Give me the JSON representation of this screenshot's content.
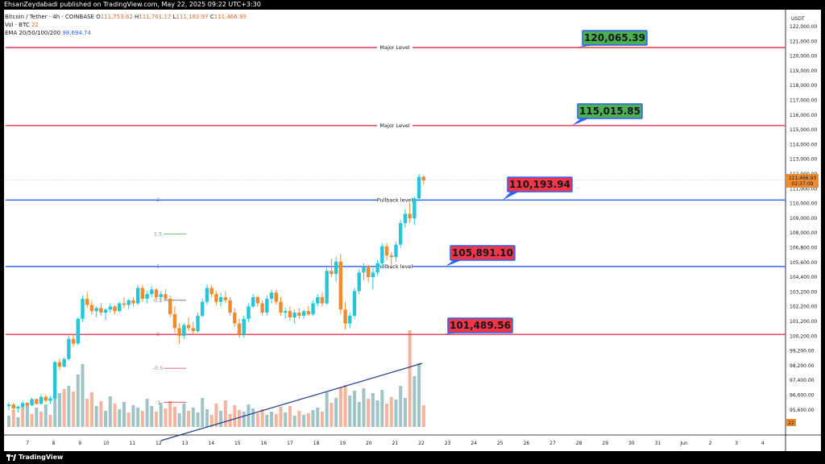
{
  "header": {
    "published": "EhsanZeydabadi published on TradingView.com, May 22, 2025 09:22 UTC+3:30"
  },
  "legend": {
    "symbol": "Bitcoin / Tether · 4h · COINBASE",
    "open_label": "O",
    "open": "111,753.62",
    "high_label": "H",
    "high": "111,761.17",
    "low_label": "L",
    "low": "111,182.97",
    "close_label": "C",
    "close": "111,466.93",
    "volume_label": "Vol · BTC",
    "volume": "22",
    "ema_label": "EMA 20/50/100/200",
    "ema_value": "98,694.74"
  },
  "footer": {
    "brand": "TradingView"
  },
  "colors": {
    "up": "#26c6da",
    "down": "#ef8a2d",
    "vol_up": "#9fc4c7",
    "vol_down": "#f4b49b",
    "major": "#e53950",
    "pullback": "#2962ff",
    "callout_green": "#4caf50",
    "callout_red": "#f23645"
  },
  "chart_data": {
    "type": "candlestick",
    "currency": "USDT",
    "ylim": [
      95500,
      122100
    ],
    "y_ticks": [
      "122,000.00",
      "121,000.00",
      "120,000.00",
      "119,000.00",
      "118,000.00",
      "117,000.00",
      "116,000.00",
      "115,000.00",
      "114,000.00",
      "113,000.00",
      "112,000.00",
      "111,000.00",
      "110,000.00",
      "109,000.00",
      "108,000.00",
      "106,800.00",
      "105,600.00",
      "104,400.00",
      "103,200.00",
      "102,200.00",
      "101,200.00",
      "100,200.00",
      "99,200.00",
      "98,200.00",
      "97,400.00",
      "96,600.00",
      "95,600.00"
    ],
    "x_ticks": [
      "7",
      "8",
      "9",
      "10",
      "11",
      "12",
      "13",
      "14",
      "15",
      "16",
      "17",
      "18",
      "19",
      "20",
      "21",
      "22",
      "23",
      "24",
      "25",
      "26",
      "27",
      "28",
      "29",
      "30",
      "31",
      "Jun",
      "2",
      "3",
      "4"
    ],
    "current_price_tag": {
      "price": "111,466.93",
      "countdown": "02:37:09"
    },
    "volume_tag": "22",
    "horizontal_levels": [
      {
        "name": "Major Level",
        "price": 120065.39,
        "kind": "major",
        "callout": "120,065.39",
        "callout_color": "green"
      },
      {
        "name": "Major Level",
        "price": 115015.85,
        "kind": "major",
        "callout": "115,015.85",
        "callout_color": "green"
      },
      {
        "name": "Pullback level",
        "price": 110193.94,
        "kind": "pullback",
        "callout": "110,193.94",
        "callout_color": "red"
      },
      {
        "name": "Pullback level",
        "price": 105891.1,
        "kind": "pullback",
        "callout": "105,891.10",
        "callout_color": "red"
      },
      {
        "name": "",
        "price": 101489.56,
        "kind": "major",
        "callout": "101,489.56",
        "callout_color": "red"
      }
    ],
    "fib_labels": [
      {
        "label": "2",
        "price": 110200
      },
      {
        "label": "1.5",
        "price": 108000
      },
      {
        "label": "1",
        "price": 105900
      },
      {
        "label": "0.5",
        "price": 103700
      },
      {
        "label": "0",
        "price": 101500
      },
      {
        "label": "-0.5",
        "price": 99300
      },
      {
        "label": "-1",
        "price": 97100
      }
    ],
    "candles": [
      [
        96850,
        97100,
        96600,
        96950
      ],
      [
        96950,
        97050,
        96550,
        96700
      ],
      [
        96700,
        96900,
        96450,
        96800
      ],
      [
        96800,
        97200,
        96700,
        97050
      ],
      [
        97050,
        97100,
        96800,
        96900
      ],
      [
        96900,
        97400,
        96850,
        97300
      ],
      [
        97300,
        97350,
        96950,
        97000
      ],
      [
        97000,
        97600,
        96950,
        97450
      ],
      [
        97450,
        97550,
        97100,
        97200
      ],
      [
        97200,
        97500,
        97000,
        97350
      ],
      [
        97350,
        99800,
        97300,
        99700
      ],
      [
        99700,
        99900,
        99200,
        99400
      ],
      [
        99400,
        100000,
        99350,
        99900
      ],
      [
        99900,
        101400,
        99800,
        101200
      ],
      [
        101200,
        101500,
        100700,
        100900
      ],
      [
        100900,
        102600,
        100800,
        102500
      ],
      [
        102500,
        104000,
        102300,
        103800
      ],
      [
        103800,
        104200,
        103200,
        103400
      ],
      [
        103400,
        103700,
        102800,
        103000
      ],
      [
        103000,
        103300,
        102600,
        103200
      ],
      [
        103200,
        103500,
        102700,
        102900
      ],
      [
        102900,
        103200,
        102400,
        103100
      ],
      [
        103100,
        103500,
        102900,
        103300
      ],
      [
        103300,
        103400,
        102800,
        103000
      ],
      [
        103000,
        103600,
        102900,
        103500
      ],
      [
        103500,
        103900,
        103200,
        103400
      ],
      [
        103400,
        103800,
        103100,
        103700
      ],
      [
        103700,
        103900,
        103300,
        103500
      ],
      [
        103500,
        104700,
        103400,
        104500
      ],
      [
        104500,
        104700,
        103600,
        103800
      ],
      [
        103800,
        104300,
        103500,
        104100
      ],
      [
        104100,
        104600,
        103900,
        104400
      ],
      [
        104400,
        104500,
        103700,
        103900
      ],
      [
        103900,
        104300,
        103600,
        104100
      ],
      [
        104100,
        104400,
        103700,
        103800
      ],
      [
        103800,
        104000,
        102600,
        102800
      ],
      [
        102800,
        103300,
        101600,
        101900
      ],
      [
        101900,
        102200,
        100900,
        101400
      ],
      [
        101400,
        102200,
        101200,
        102100
      ],
      [
        102100,
        102600,
        101700,
        101900
      ],
      [
        101900,
        102300,
        101500,
        101700
      ],
      [
        101700,
        102900,
        101600,
        102700
      ],
      [
        102700,
        103800,
        102600,
        103600
      ],
      [
        103600,
        104700,
        103400,
        104500
      ],
      [
        104500,
        104700,
        103900,
        104100
      ],
      [
        104100,
        104300,
        103400,
        103600
      ],
      [
        103600,
        104200,
        103300,
        103900
      ],
      [
        103900,
        104300,
        103500,
        103700
      ],
      [
        103700,
        103900,
        102700,
        102900
      ],
      [
        102900,
        103200,
        102000,
        102200
      ],
      [
        102200,
        102500,
        101300,
        101500
      ],
      [
        101500,
        102700,
        101300,
        102500
      ],
      [
        102500,
        103500,
        102300,
        103300
      ],
      [
        103300,
        104100,
        103200,
        103900
      ],
      [
        103900,
        104000,
        103300,
        103500
      ],
      [
        103500,
        103700,
        102700,
        102900
      ],
      [
        102900,
        104000,
        102700,
        103800
      ],
      [
        103800,
        104400,
        103500,
        104200
      ],
      [
        104200,
        104400,
        103400,
        103600
      ],
      [
        103600,
        103900,
        102700,
        102900
      ],
      [
        102900,
        103200,
        102500,
        103000
      ],
      [
        103000,
        103300,
        102400,
        102600
      ],
      [
        102600,
        103100,
        102200,
        102900
      ],
      [
        102900,
        103200,
        102500,
        102700
      ],
      [
        102700,
        103100,
        102500,
        103000
      ],
      [
        103000,
        103300,
        102700,
        102800
      ],
      [
        102800,
        103700,
        102700,
        103500
      ],
      [
        103500,
        104100,
        103300,
        103900
      ],
      [
        103900,
        104200,
        103300,
        103500
      ],
      [
        103500,
        105800,
        103400,
        105600
      ],
      [
        105600,
        106400,
        105200,
        105400
      ],
      [
        105400,
        106500,
        104900,
        106200
      ],
      [
        106200,
        106700,
        102800,
        103100
      ],
      [
        103100,
        103600,
        101800,
        102200
      ],
      [
        102200,
        102900,
        101900,
        102700
      ],
      [
        102700,
        104500,
        102500,
        104300
      ],
      [
        104300,
        105700,
        104100,
        105500
      ],
      [
        105500,
        106100,
        105000,
        105900
      ],
      [
        105900,
        106000,
        104900,
        105200
      ],
      [
        105200,
        105800,
        104400,
        105500
      ],
      [
        105500,
        106300,
        105300,
        106100
      ],
      [
        106100,
        107400,
        105800,
        107200
      ],
      [
        107200,
        107400,
        106300,
        106600
      ],
      [
        106600,
        106800,
        106000,
        106500
      ],
      [
        106500,
        107500,
        106200,
        107300
      ],
      [
        107300,
        108900,
        107100,
        108700
      ],
      [
        108700,
        109600,
        108400,
        109300
      ],
      [
        109300,
        110000,
        108700,
        109000
      ],
      [
        109000,
        110400,
        108600,
        110300
      ],
      [
        110300,
        111900,
        110100,
        111700
      ],
      [
        111700,
        111800,
        111200,
        111466.93
      ]
    ],
    "volumes": [
      [
        1.4,
        "u"
      ],
      [
        2.1,
        "d"
      ],
      [
        1.2,
        "u"
      ],
      [
        2.6,
        "d"
      ],
      [
        3.0,
        "u"
      ],
      [
        1.6,
        "d"
      ],
      [
        2.4,
        "u"
      ],
      [
        1.9,
        "d"
      ],
      [
        2.8,
        "u"
      ],
      [
        1.5,
        "d"
      ],
      [
        6.4,
        "u"
      ],
      [
        4.2,
        "u"
      ],
      [
        4.7,
        "d"
      ],
      [
        5.1,
        "u"
      ],
      [
        4.4,
        "d"
      ],
      [
        6.5,
        "u"
      ],
      [
        7.8,
        "u"
      ],
      [
        3.5,
        "d"
      ],
      [
        4.3,
        "d"
      ],
      [
        2.6,
        "u"
      ],
      [
        3.2,
        "d"
      ],
      [
        2.0,
        "u"
      ],
      [
        3.8,
        "u"
      ],
      [
        2.9,
        "d"
      ],
      [
        2.2,
        "u"
      ],
      [
        3.1,
        "u"
      ],
      [
        1.8,
        "d"
      ],
      [
        2.7,
        "u"
      ],
      [
        2.4,
        "u"
      ],
      [
        2.0,
        "d"
      ],
      [
        3.5,
        "u"
      ],
      [
        2.6,
        "u"
      ],
      [
        1.9,
        "d"
      ],
      [
        3.0,
        "u"
      ],
      [
        2.3,
        "d"
      ],
      [
        3.2,
        "d"
      ],
      [
        2.5,
        "d"
      ],
      [
        1.7,
        "u"
      ],
      [
        2.9,
        "u"
      ],
      [
        2.0,
        "d"
      ],
      [
        2.4,
        "u"
      ],
      [
        1.8,
        "u"
      ],
      [
        3.6,
        "u"
      ],
      [
        2.2,
        "u"
      ],
      [
        1.5,
        "d"
      ],
      [
        2.9,
        "d"
      ],
      [
        2.0,
        "u"
      ],
      [
        3.3,
        "d"
      ],
      [
        1.6,
        "d"
      ],
      [
        2.7,
        "d"
      ],
      [
        2.1,
        "d"
      ],
      [
        1.9,
        "u"
      ],
      [
        2.8,
        "u"
      ],
      [
        2.3,
        "u"
      ],
      [
        1.7,
        "d"
      ],
      [
        2.2,
        "d"
      ],
      [
        1.5,
        "u"
      ],
      [
        1.9,
        "u"
      ],
      [
        1.6,
        "d"
      ],
      [
        2.5,
        "d"
      ],
      [
        1.8,
        "u"
      ],
      [
        2.6,
        "d"
      ],
      [
        1.4,
        "u"
      ],
      [
        2.0,
        "d"
      ],
      [
        1.5,
        "u"
      ],
      [
        1.7,
        "d"
      ],
      [
        2.1,
        "u"
      ],
      [
        2.4,
        "u"
      ],
      [
        1.9,
        "d"
      ],
      [
        4.3,
        "u"
      ],
      [
        3.0,
        "d"
      ],
      [
        3.6,
        "u"
      ],
      [
        4.9,
        "d"
      ],
      [
        5.2,
        "d"
      ],
      [
        3.9,
        "u"
      ],
      [
        4.5,
        "u"
      ],
      [
        3.1,
        "u"
      ],
      [
        4.8,
        "u"
      ],
      [
        3.5,
        "d"
      ],
      [
        4.2,
        "u"
      ],
      [
        3.3,
        "u"
      ],
      [
        4.6,
        "u"
      ],
      [
        2.9,
        "d"
      ],
      [
        3.7,
        "d"
      ],
      [
        3.4,
        "u"
      ],
      [
        5.1,
        "u"
      ],
      [
        3.6,
        "u"
      ],
      [
        12.0,
        "d"
      ],
      [
        6.3,
        "u"
      ],
      [
        7.9,
        "u"
      ],
      [
        2.7,
        "d"
      ]
    ],
    "volume_trendline": {
      "from_index": 33,
      "to_index": 89
    }
  }
}
